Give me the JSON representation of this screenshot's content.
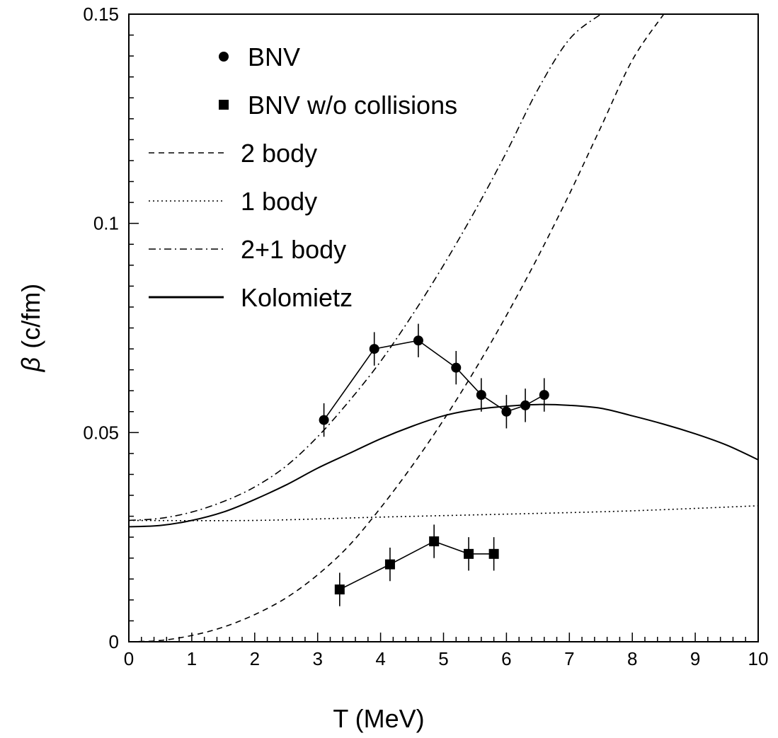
{
  "chart_data": {
    "type": "line",
    "xlabel": "T (MeV)",
    "ylabel_symbol": "β",
    "ylabel_unit": "(c/fm)",
    "xlim": [
      0,
      10
    ],
    "ylim": [
      0,
      0.15
    ],
    "x_ticks": [
      0,
      1,
      2,
      3,
      4,
      5,
      6,
      7,
      8,
      9,
      10
    ],
    "x_tick_labels": [
      "0",
      "1",
      "2",
      "3",
      "4",
      "5",
      "6",
      "7",
      "8",
      "9",
      "10"
    ],
    "y_ticks": [
      0,
      0.05,
      0.1,
      0.15
    ],
    "y_tick_labels": [
      "0",
      "0.05",
      "0.1",
      "0.15"
    ],
    "grid": false,
    "legend_position": "top-left",
    "series": [
      {
        "name": "BNV",
        "kind": "markers",
        "marker": "circle",
        "connected": true,
        "x": [
          3.1,
          3.9,
          4.6,
          5.2,
          5.6,
          6.0,
          6.3,
          6.6
        ],
        "y": [
          0.053,
          0.07,
          0.072,
          0.0655,
          0.059,
          0.055,
          0.0565,
          0.059
        ],
        "yerr": [
          0.004,
          0.004,
          0.004,
          0.004,
          0.004,
          0.004,
          0.004,
          0.004
        ]
      },
      {
        "name": "BNV w/o collisions",
        "kind": "markers",
        "marker": "square",
        "connected": true,
        "x": [
          3.35,
          4.15,
          4.85,
          5.4,
          5.8
        ],
        "y": [
          0.0125,
          0.0185,
          0.024,
          0.021,
          0.021
        ],
        "yerr": [
          0.004,
          0.004,
          0.004,
          0.004,
          0.004
        ]
      },
      {
        "name": "2 body",
        "kind": "curve",
        "dash": "dashed",
        "x": [
          0,
          0.5,
          1,
          1.5,
          2,
          2.5,
          3,
          3.5,
          4,
          4.5,
          5,
          5.5,
          6,
          6.5,
          7,
          7.5,
          8,
          8.5
        ],
        "y": [
          0,
          0.0003,
          0.0015,
          0.0035,
          0.0065,
          0.0105,
          0.016,
          0.023,
          0.032,
          0.042,
          0.053,
          0.065,
          0.078,
          0.092,
          0.107,
          0.123,
          0.139,
          0.15
        ]
      },
      {
        "name": "1 body",
        "kind": "curve",
        "dash": "dotted",
        "x": [
          0,
          2,
          4,
          6,
          8,
          10
        ],
        "y": [
          0.029,
          0.029,
          0.0298,
          0.0305,
          0.0313,
          0.0325
        ]
      },
      {
        "name": "2+1 body",
        "kind": "curve",
        "dash": "dashdot",
        "x": [
          0,
          0.5,
          1,
          1.5,
          2,
          2.5,
          3,
          3.5,
          4,
          4.5,
          5,
          5.5,
          6,
          6.5,
          7,
          7.5
        ],
        "y": [
          0.029,
          0.0295,
          0.031,
          0.0335,
          0.037,
          0.042,
          0.049,
          0.0575,
          0.067,
          0.078,
          0.09,
          0.103,
          0.117,
          0.132,
          0.144,
          0.15
        ]
      },
      {
        "name": "Kolomietz",
        "kind": "curve",
        "dash": "solid",
        "x": [
          0,
          0.5,
          1,
          1.5,
          2,
          2.5,
          3,
          3.5,
          4,
          4.5,
          5,
          5.5,
          6,
          6.5,
          7,
          7.5,
          8,
          8.5,
          9,
          9.5,
          10
        ],
        "y": [
          0.0275,
          0.0278,
          0.029,
          0.031,
          0.034,
          0.0375,
          0.0415,
          0.045,
          0.0485,
          0.0515,
          0.054,
          0.0555,
          0.0563,
          0.0567,
          0.0565,
          0.0558,
          0.054,
          0.052,
          0.0497,
          0.047,
          0.0435
        ]
      }
    ]
  }
}
